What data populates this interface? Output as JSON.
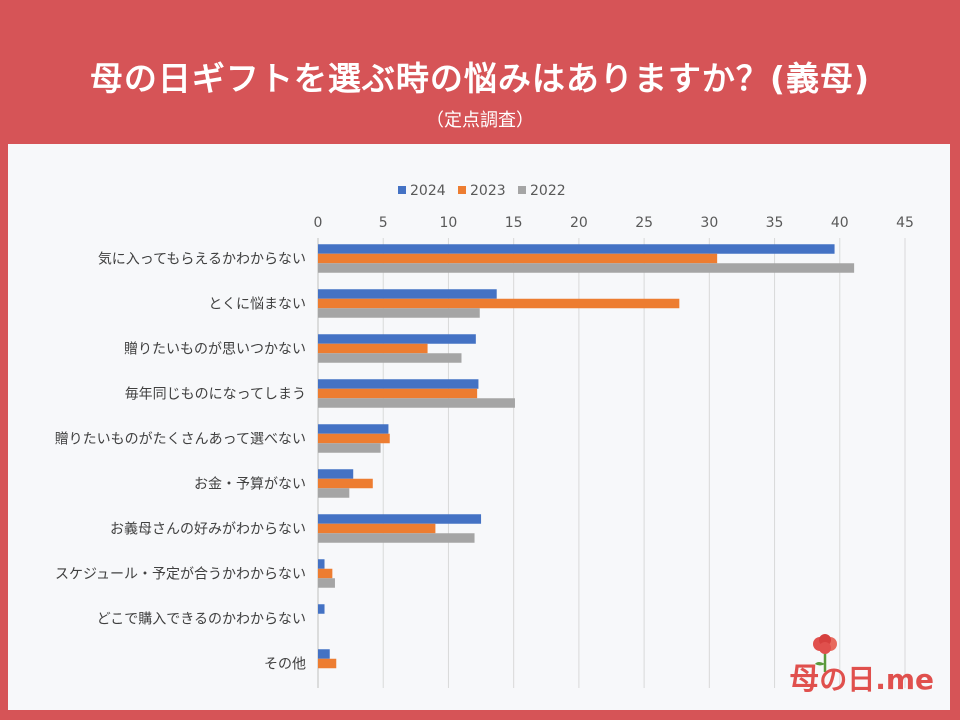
{
  "header": {
    "title": "母の日ギフトを選ぶ時の悩みはありますか？(義母)",
    "subtitle": "（定点調査）"
  },
  "logo": {
    "text": "の日.me",
    "glyph": "母"
  },
  "colors": {
    "background": "#d65457",
    "panel": "#f7f8fa",
    "s2024": "#4472c4",
    "s2023": "#ed7d31",
    "s2022": "#a5a5a5"
  },
  "chart_data": {
    "type": "bar",
    "orientation": "horizontal",
    "categories": [
      "気に入ってもらえるかわからない",
      "とくに悩まない",
      "贈りたいものが思いつかない",
      "毎年同じものになってしまう",
      "贈りたいものがたくさんあって選べない",
      "お金・予算がない",
      "お義母さんの好みがわからない",
      "スケジュール・予定が合うかわからない",
      "どこで購入できるのかわからない",
      "その他"
    ],
    "series": [
      {
        "name": "2024",
        "color": "#4472c4",
        "values": [
          39.6,
          13.7,
          12.1,
          12.3,
          5.4,
          2.7,
          12.5,
          0.5,
          0.5,
          0.9
        ]
      },
      {
        "name": "2023",
        "color": "#ed7d31",
        "values": [
          30.6,
          27.7,
          8.4,
          12.2,
          5.5,
          4.2,
          9.0,
          1.1,
          0,
          1.4
        ]
      },
      {
        "name": "2022",
        "color": "#a5a5a5",
        "values": [
          41.1,
          12.4,
          11.0,
          15.1,
          4.8,
          2.4,
          12.0,
          1.3,
          0,
          0
        ]
      }
    ],
    "xlim": [
      0,
      45
    ],
    "xticks": [
      0,
      5,
      10,
      15,
      20,
      25,
      30,
      35,
      40,
      45
    ],
    "legend_position": "top",
    "grid": true
  }
}
